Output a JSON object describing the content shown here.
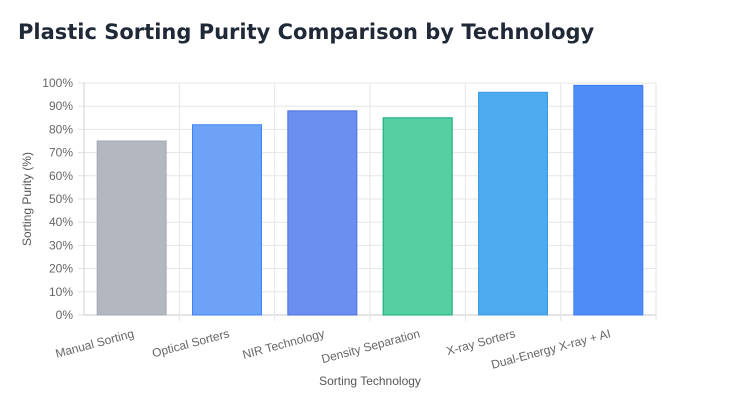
{
  "page_title": "Plastic Sorting Purity Comparison by Technology",
  "chart_data": {
    "type": "bar",
    "title": "Plastic Sorting Purity Comparison by Technology",
    "xlabel": "Sorting Technology",
    "ylabel": "Sorting Purity (%)",
    "categories": [
      "Manual Sorting",
      "Optical Sorters",
      "NIR Technology",
      "Density Separation",
      "X-ray Sorters",
      "Dual-Energy X-ray + AI"
    ],
    "values": [
      75,
      82,
      88,
      85,
      96,
      99
    ],
    "ylim": [
      0,
      100
    ],
    "yticks": [
      "0%",
      "10%",
      "20%",
      "30%",
      "40%",
      "50%",
      "60%",
      "70%",
      "80%",
      "90%",
      "100%"
    ],
    "grid": true,
    "legend": "none",
    "colors": [
      {
        "fill": "#b3b7c0",
        "stroke": "#a6aab3"
      },
      {
        "fill": "#6ea2f7",
        "stroke": "#3b82f6"
      },
      {
        "fill": "#6a8ff0",
        "stroke": "#4f6fd8"
      },
      {
        "fill": "#56cfa3",
        "stroke": "#10a876"
      },
      {
        "fill": "#4eaaee",
        "stroke": "#3b9ae6"
      },
      {
        "fill": "#4f8cf7",
        "stroke": "#3b7bf0"
      }
    ]
  }
}
